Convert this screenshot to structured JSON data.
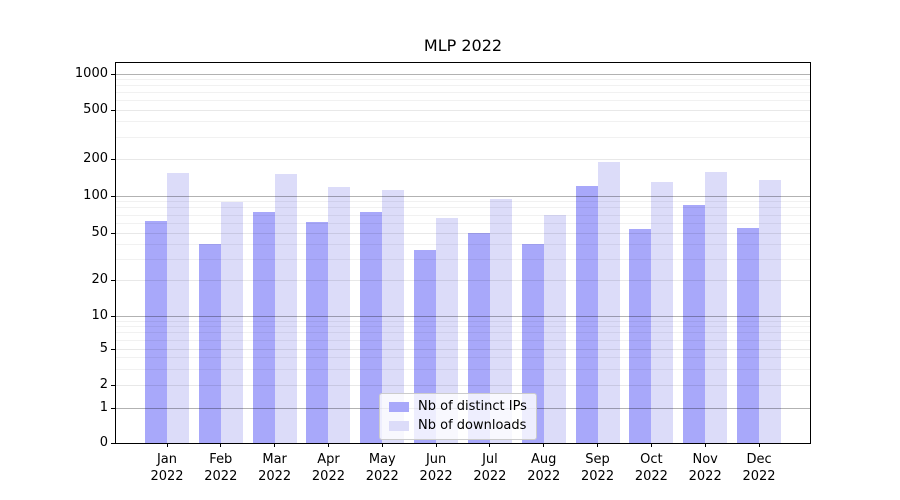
{
  "chart_data": {
    "type": "bar",
    "title": "MLP 2022",
    "months": [
      "Jan",
      "Feb",
      "Mar",
      "Apr",
      "May",
      "Jun",
      "Jul",
      "Aug",
      "Sep",
      "Oct",
      "Nov",
      "Dec"
    ],
    "x_tick_year": "2022",
    "series": [
      {
        "name": "Nb of distinct IPs",
        "color": "#a8a8fa",
        "values": [
          63,
          40,
          74,
          62,
          74,
          36,
          50,
          40,
          120,
          54,
          85,
          55
        ]
      },
      {
        "name": "Nb of downloads",
        "color": "#dcdcf9",
        "values": [
          155,
          90,
          150,
          118,
          112,
          66,
          95,
          70,
          188,
          130,
          158,
          135
        ]
      }
    ],
    "y_ticks": [
      0,
      1,
      2,
      5,
      10,
      20,
      50,
      100,
      200,
      500,
      1000
    ],
    "ylim": [
      0,
      1000
    ],
    "yscale": "symlog",
    "grid": true,
    "grid_major_at": [
      1,
      10,
      100,
      1000
    ],
    "grid_minor_at": [
      3,
      4,
      6,
      7,
      8,
      9,
      30,
      40,
      60,
      70,
      80,
      90,
      300,
      400,
      600,
      700,
      800,
      900
    ],
    "legend_position": "lower center",
    "colors": {
      "axis": "#000000",
      "grid_major": "#b2b2b2",
      "grid_minor": "#ebebeb",
      "legend_border": "#cccccc"
    }
  }
}
